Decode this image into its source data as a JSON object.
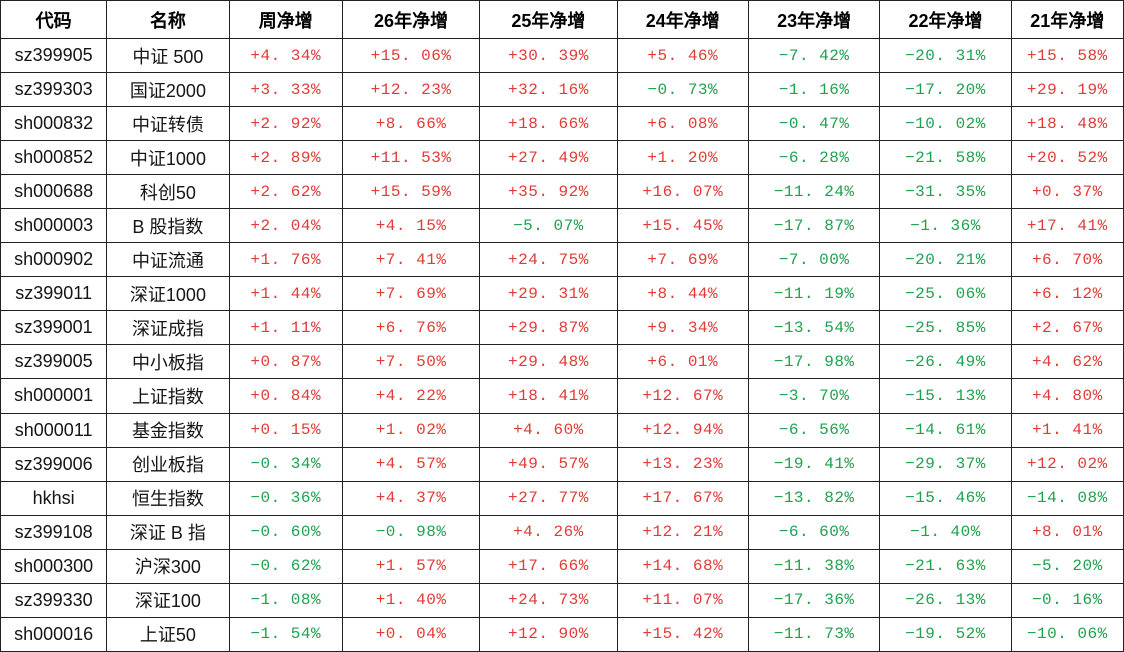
{
  "chart_data": {
    "type": "table",
    "columns": [
      "代码",
      "名称",
      "周净增",
      "26年净增",
      "25年净增",
      "24年净增",
      "23年净增",
      "22年净增",
      "21年净增"
    ],
    "rows": [
      {
        "code": "sz399905",
        "name": "中证 500",
        "values": [
          "+4.34%",
          "+15.06%",
          "+30.39%",
          "+5.46%",
          "-7.42%",
          "-20.31%",
          "+15.58%"
        ]
      },
      {
        "code": "sz399303",
        "name": "国证2000",
        "values": [
          "+3.33%",
          "+12.23%",
          "+32.16%",
          "-0.73%",
          "-1.16%",
          "-17.20%",
          "+29.19%"
        ]
      },
      {
        "code": "sh000832",
        "name": "中证转债",
        "values": [
          "+2.92%",
          "+8.66%",
          "+18.66%",
          "+6.08%",
          "-0.47%",
          "-10.02%",
          "+18.48%"
        ]
      },
      {
        "code": "sh000852",
        "name": "中证1000",
        "values": [
          "+2.89%",
          "+11.53%",
          "+27.49%",
          "+1.20%",
          "-6.28%",
          "-21.58%",
          "+20.52%"
        ]
      },
      {
        "code": "sh000688",
        "name": "科创50",
        "values": [
          "+2.62%",
          "+15.59%",
          "+35.92%",
          "+16.07%",
          "-11.24%",
          "-31.35%",
          "+0.37%"
        ]
      },
      {
        "code": "sh000003",
        "name": "B 股指数",
        "values": [
          "+2.04%",
          "+4.15%",
          "-5.07%",
          "+15.45%",
          "-17.87%",
          "-1.36%",
          "+17.41%"
        ]
      },
      {
        "code": "sh000902",
        "name": "中证流通",
        "values": [
          "+1.76%",
          "+7.41%",
          "+24.75%",
          "+7.69%",
          "-7.00%",
          "-20.21%",
          "+6.70%"
        ]
      },
      {
        "code": "sz399011",
        "name": "深证1000",
        "values": [
          "+1.44%",
          "+7.69%",
          "+29.31%",
          "+8.44%",
          "-11.19%",
          "-25.06%",
          "+6.12%"
        ]
      },
      {
        "code": "sz399001",
        "name": "深证成指",
        "values": [
          "+1.11%",
          "+6.76%",
          "+29.87%",
          "+9.34%",
          "-13.54%",
          "-25.85%",
          "+2.67%"
        ]
      },
      {
        "code": "sz399005",
        "name": "中小板指",
        "values": [
          "+0.87%",
          "+7.50%",
          "+29.48%",
          "+6.01%",
          "-17.98%",
          "-26.49%",
          "+4.62%"
        ]
      },
      {
        "code": "sh000001",
        "name": "上证指数",
        "values": [
          "+0.84%",
          "+4.22%",
          "+18.41%",
          "+12.67%",
          "-3.70%",
          "-15.13%",
          "+4.80%"
        ]
      },
      {
        "code": "sh000011",
        "name": "基金指数",
        "values": [
          "+0.15%",
          "+1.02%",
          "+4.60%",
          "+12.94%",
          "-6.56%",
          "-14.61%",
          "+1.41%"
        ]
      },
      {
        "code": "sz399006",
        "name": "创业板指",
        "values": [
          "-0.34%",
          "+4.57%",
          "+49.57%",
          "+13.23%",
          "-19.41%",
          "-29.37%",
          "+12.02%"
        ]
      },
      {
        "code": "hkhsi",
        "name": "恒生指数",
        "values": [
          "-0.36%",
          "+4.37%",
          "+27.77%",
          "+17.67%",
          "-13.82%",
          "-15.46%",
          "-14.08%"
        ]
      },
      {
        "code": "sz399108",
        "name": "深证 B 指",
        "values": [
          "-0.60%",
          "-0.98%",
          "+4.26%",
          "+12.21%",
          "-6.60%",
          "-1.40%",
          "+8.01%"
        ]
      },
      {
        "code": "sh000300",
        "name": "沪深300",
        "values": [
          "-0.62%",
          "+1.57%",
          "+17.66%",
          "+14.68%",
          "-11.38%",
          "-21.63%",
          "-5.20%"
        ]
      },
      {
        "code": "sz399330",
        "name": "深证100",
        "values": [
          "-1.08%",
          "+1.40%",
          "+24.73%",
          "+11.07%",
          "-17.36%",
          "-26.13%",
          "-0.16%"
        ]
      },
      {
        "code": "sh000016",
        "name": "上证50",
        "values": [
          "-1.54%",
          "+0.04%",
          "+12.90%",
          "+15.42%",
          "-11.73%",
          "-19.52%",
          "-10.06%"
        ]
      }
    ],
    "layout": {
      "grid": "on",
      "header_row": true
    },
    "colors": {
      "positive": "#e23b36",
      "negative": "#1ea24e",
      "header_text": "#000000",
      "grid": "#222222",
      "background": "#ffffff"
    }
  }
}
